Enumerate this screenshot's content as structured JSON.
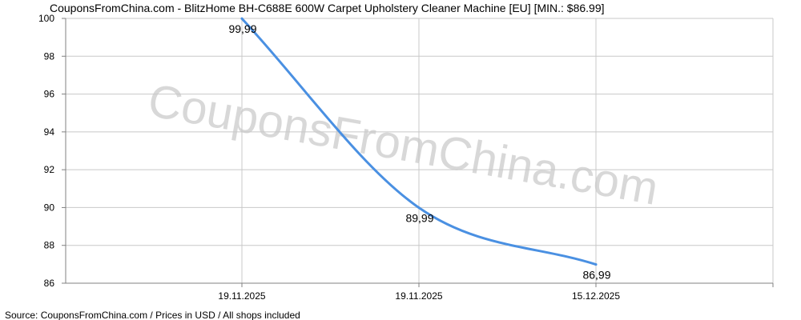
{
  "title": "CouponsFromChina.com - BlitzHome BH-C688E 600W Carpet Upholstery Cleaner Machine [EU] [MIN.: $86.99]",
  "source": "Source: CouponsFromChina.com / Prices in USD / All shops included",
  "watermark": "CouponsFromChina.com",
  "colors": {
    "line": "#4a90e2",
    "grid": "#c8c8c8",
    "axis": "#808080"
  },
  "chart_data": {
    "type": "line",
    "title": "CouponsFromChina.com - BlitzHome BH-C688E 600W Carpet Upholstery Cleaner Machine [EU] [MIN.: $86.99]",
    "xlabel": "",
    "ylabel": "",
    "ylim": [
      86,
      100
    ],
    "y_ticks": [
      "100",
      "98",
      "96",
      "94",
      "92",
      "90",
      "88",
      "86"
    ],
    "x_ticks": [
      "19.11.2025",
      "19.11.2025",
      "15.12.2025"
    ],
    "grid": true,
    "series": [
      {
        "values": [
          99.99,
          89.99,
          86.99
        ],
        "labels": [
          "99,99",
          "89,99",
          "86,99"
        ]
      }
    ]
  }
}
